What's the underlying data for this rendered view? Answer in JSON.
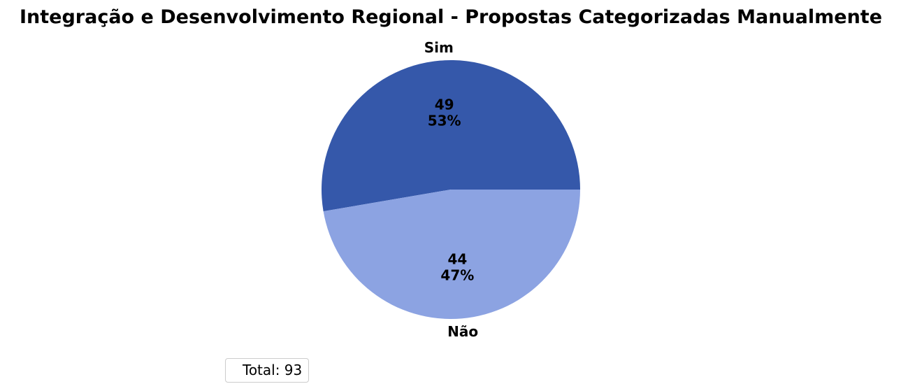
{
  "chart_data": {
    "type": "pie",
    "title": "Integração e Desenvolvimento Regional - Propostas Categorizadas Manualmente",
    "categories": [
      "Sim",
      "Não"
    ],
    "values": [
      49,
      44
    ],
    "percent_labels": [
      "53%",
      "47%"
    ],
    "colors": [
      "#3558AA",
      "#8CA3E2"
    ],
    "legend": {
      "placement": "lower-left",
      "text": "Total: 93"
    }
  }
}
